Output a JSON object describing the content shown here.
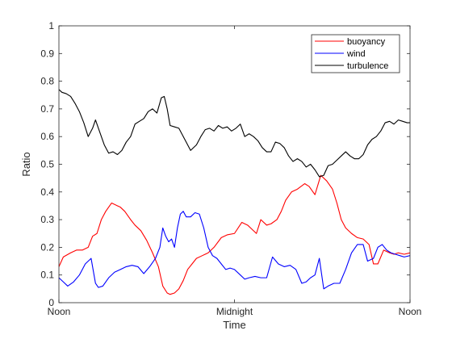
{
  "chart_data": {
    "type": "line",
    "title": "",
    "xlabel": "Time",
    "ylabel": "Ratio",
    "xlim": [
      0,
      24
    ],
    "ylim": [
      0,
      1
    ],
    "grid": false,
    "legend_position": "top-right",
    "x_ticks": [
      {
        "value": 0,
        "label": "Noon"
      },
      {
        "value": 12,
        "label": "Midnight"
      },
      {
        "value": 24,
        "label": "Noon"
      }
    ],
    "y_ticks": [
      {
        "value": 0,
        "label": "0"
      },
      {
        "value": 0.1,
        "label": "0.1"
      },
      {
        "value": 0.2,
        "label": "0.2"
      },
      {
        "value": 0.3,
        "label": "0.3"
      },
      {
        "value": 0.4,
        "label": "0.4"
      },
      {
        "value": 0.5,
        "label": "0.5"
      },
      {
        "value": 0.6,
        "label": "0.6"
      },
      {
        "value": 0.7,
        "label": "0.7"
      },
      {
        "value": 0.8,
        "label": "0.8"
      },
      {
        "value": 0.9,
        "label": "0.9"
      },
      {
        "value": 1,
        "label": "1"
      }
    ],
    "series": [
      {
        "name": "buoyancy",
        "color": "#ff0000",
        "x": [
          0,
          0.3,
          0.8,
          1.2,
          1.6,
          2.0,
          2.3,
          2.6,
          2.9,
          3.2,
          3.6,
          4.0,
          4.2,
          4.5,
          4.9,
          5.2,
          5.6,
          6.0,
          6.4,
          6.8,
          7.1,
          7.4,
          7.6,
          7.9,
          8.2,
          8.5,
          8.8,
          9.1,
          9.4,
          9.8,
          10.2,
          10.6,
          11.1,
          11.5,
          12.0,
          12.5,
          12.9,
          13.2,
          13.5,
          13.8,
          14.2,
          14.5,
          14.9,
          15.2,
          15.5,
          15.9,
          16.3,
          16.8,
          17.1,
          17.5,
          17.9,
          18.3,
          18.7,
          19.0,
          19.3,
          19.6,
          20.0,
          20.4,
          20.8,
          21.2,
          21.5,
          21.8,
          22.2,
          22.6,
          22.9,
          23.2,
          23.6,
          24.0
        ],
        "y": [
          0.13,
          0.165,
          0.18,
          0.19,
          0.19,
          0.2,
          0.24,
          0.25,
          0.3,
          0.33,
          0.36,
          0.35,
          0.345,
          0.33,
          0.3,
          0.28,
          0.26,
          0.225,
          0.18,
          0.13,
          0.06,
          0.035,
          0.03,
          0.035,
          0.05,
          0.08,
          0.12,
          0.14,
          0.16,
          0.17,
          0.18,
          0.2,
          0.235,
          0.245,
          0.25,
          0.29,
          0.28,
          0.265,
          0.25,
          0.3,
          0.28,
          0.285,
          0.3,
          0.33,
          0.37,
          0.4,
          0.41,
          0.43,
          0.42,
          0.39,
          0.46,
          0.44,
          0.41,
          0.36,
          0.3,
          0.27,
          0.25,
          0.235,
          0.23,
          0.21,
          0.14,
          0.14,
          0.19,
          0.18,
          0.175,
          0.18,
          0.175,
          0.18
        ]
      },
      {
        "name": "wind",
        "color": "#0000ff",
        "x": [
          0,
          0.3,
          0.6,
          1.0,
          1.4,
          1.8,
          2.2,
          2.5,
          2.7,
          3.0,
          3.4,
          3.8,
          4.2,
          4.6,
          5.0,
          5.4,
          5.8,
          6.2,
          6.6,
          6.9,
          7.1,
          7.3,
          7.5,
          7.7,
          7.9,
          8.1,
          8.3,
          8.5,
          8.7,
          9.0,
          9.3,
          9.6,
          9.9,
          10.2,
          10.5,
          10.8,
          11.1,
          11.4,
          11.7,
          12.0,
          12.4,
          12.7,
          13.0,
          13.4,
          13.8,
          14.2,
          14.6,
          15.0,
          15.4,
          15.8,
          16.2,
          16.6,
          16.9,
          17.2,
          17.5,
          17.8,
          18.1,
          18.4,
          18.8,
          19.2,
          19.6,
          20.0,
          20.4,
          20.8,
          21.1,
          21.5,
          21.8,
          22.1,
          22.4,
          22.7,
          23.0,
          23.3,
          23.6,
          24.0
        ],
        "y": [
          0.09,
          0.075,
          0.06,
          0.075,
          0.1,
          0.14,
          0.16,
          0.07,
          0.055,
          0.06,
          0.09,
          0.11,
          0.12,
          0.13,
          0.135,
          0.13,
          0.105,
          0.13,
          0.16,
          0.2,
          0.27,
          0.24,
          0.22,
          0.23,
          0.2,
          0.27,
          0.32,
          0.33,
          0.31,
          0.31,
          0.325,
          0.32,
          0.27,
          0.2,
          0.17,
          0.16,
          0.14,
          0.12,
          0.125,
          0.12,
          0.1,
          0.085,
          0.09,
          0.095,
          0.09,
          0.09,
          0.165,
          0.14,
          0.13,
          0.135,
          0.12,
          0.07,
          0.075,
          0.09,
          0.1,
          0.16,
          0.05,
          0.06,
          0.07,
          0.07,
          0.12,
          0.18,
          0.21,
          0.21,
          0.15,
          0.16,
          0.2,
          0.21,
          0.19,
          0.18,
          0.175,
          0.17,
          0.165,
          0.17
        ]
      },
      {
        "name": "turbulence",
        "color": "#000000",
        "x": [
          0,
          0.2,
          0.5,
          0.8,
          1.1,
          1.4,
          1.7,
          2.0,
          2.3,
          2.5,
          2.7,
          2.9,
          3.1,
          3.4,
          3.7,
          4.0,
          4.3,
          4.6,
          4.9,
          5.2,
          5.5,
          5.8,
          6.1,
          6.4,
          6.7,
          7.0,
          7.2,
          7.4,
          7.6,
          7.9,
          8.2,
          8.6,
          9.0,
          9.4,
          9.7,
          10.0,
          10.3,
          10.6,
          10.9,
          11.2,
          11.5,
          11.8,
          12.1,
          12.4,
          12.7,
          13.0,
          13.3,
          13.6,
          13.9,
          14.2,
          14.5,
          14.8,
          15.1,
          15.4,
          15.7,
          16.0,
          16.3,
          16.6,
          16.9,
          17.2,
          17.5,
          17.8,
          18.1,
          18.4,
          18.7,
          19.0,
          19.3,
          19.6,
          19.9,
          20.2,
          20.5,
          20.8,
          21.1,
          21.4,
          21.7,
          22.0,
          22.3,
          22.6,
          22.9,
          23.2,
          23.5,
          23.8,
          24.0
        ],
        "y": [
          0.77,
          0.76,
          0.755,
          0.745,
          0.72,
          0.69,
          0.65,
          0.6,
          0.63,
          0.66,
          0.63,
          0.6,
          0.57,
          0.54,
          0.545,
          0.535,
          0.55,
          0.58,
          0.6,
          0.645,
          0.655,
          0.665,
          0.69,
          0.7,
          0.685,
          0.74,
          0.745,
          0.7,
          0.64,
          0.635,
          0.63,
          0.59,
          0.55,
          0.57,
          0.6,
          0.625,
          0.63,
          0.62,
          0.64,
          0.63,
          0.635,
          0.62,
          0.63,
          0.645,
          0.6,
          0.61,
          0.6,
          0.585,
          0.56,
          0.545,
          0.545,
          0.58,
          0.575,
          0.56,
          0.53,
          0.51,
          0.52,
          0.51,
          0.49,
          0.5,
          0.48,
          0.455,
          0.46,
          0.495,
          0.5,
          0.515,
          0.53,
          0.545,
          0.53,
          0.52,
          0.52,
          0.535,
          0.57,
          0.59,
          0.6,
          0.62,
          0.65,
          0.655,
          0.645,
          0.66,
          0.655,
          0.65,
          0.65
        ]
      }
    ]
  }
}
